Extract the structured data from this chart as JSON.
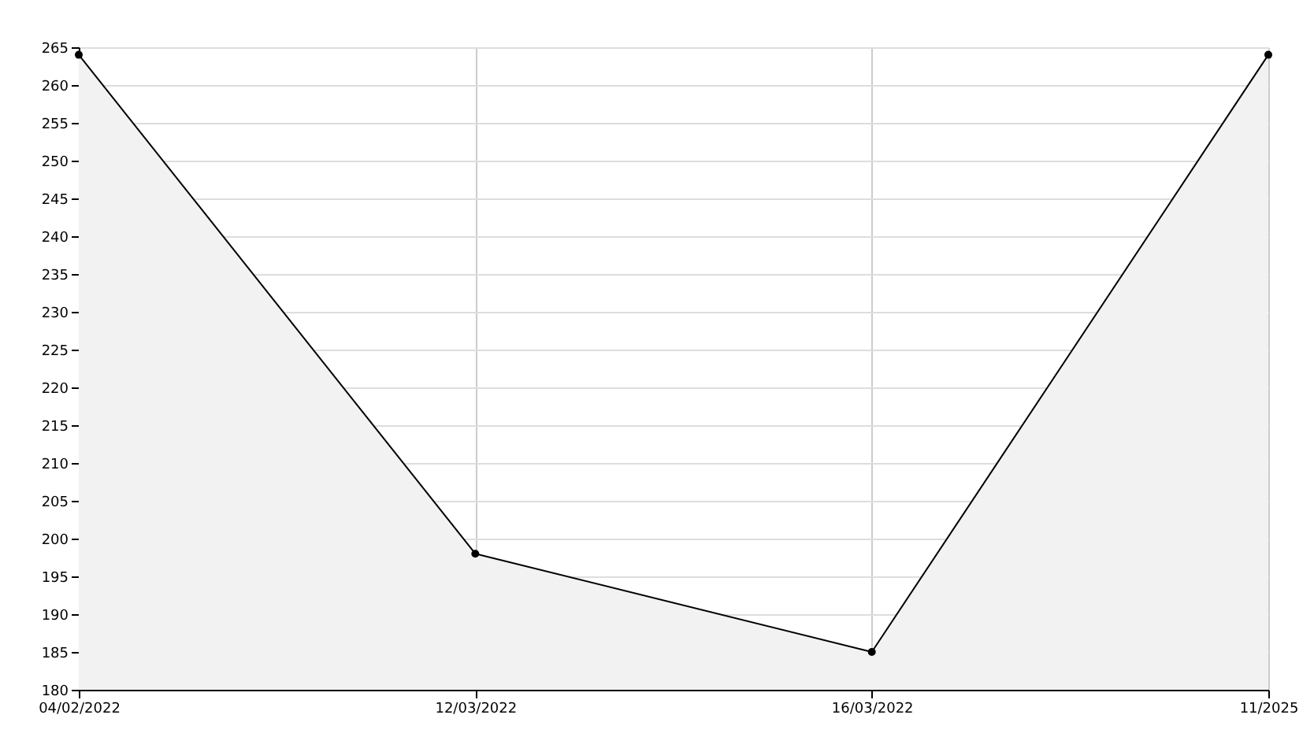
{
  "chart_data": {
    "type": "area",
    "categories": [
      "04/02/2022",
      "12/03/2022",
      "16/03/2022",
      "11/2025"
    ],
    "series": [
      {
        "color": "#000000",
        "values": [
          264,
          198,
          185,
          264
        ]
      }
    ],
    "ylim": [
      180,
      265
    ],
    "yticks": [
      180,
      185,
      190,
      195,
      200,
      205,
      210,
      215,
      220,
      225,
      230,
      235,
      240,
      245,
      250,
      255,
      260,
      265
    ],
    "grid": true,
    "marker": "circle",
    "line_style": "solid"
  }
}
